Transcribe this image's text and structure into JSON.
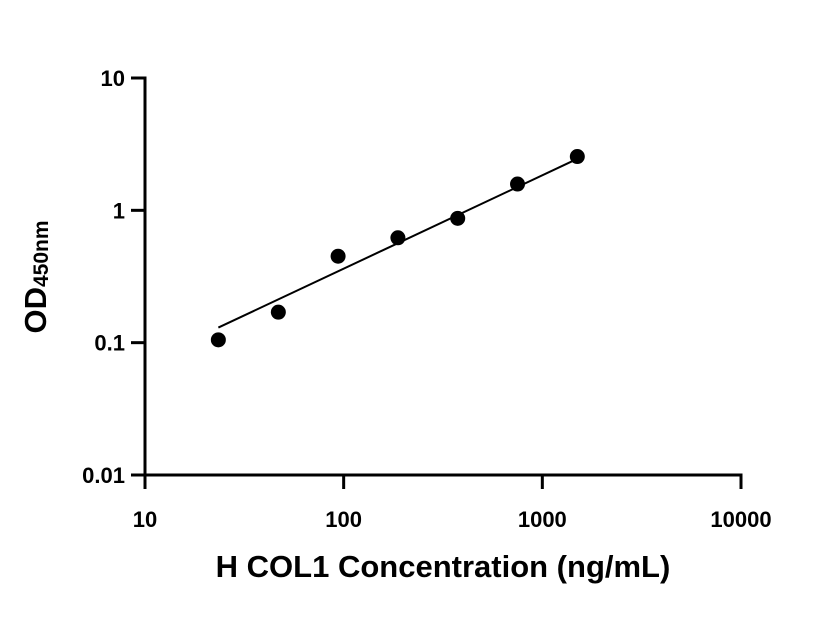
{
  "chart_data": {
    "type": "scatter",
    "xscale": "log",
    "yscale": "log",
    "xlim": [
      10,
      10000
    ],
    "ylim": [
      0.01,
      10
    ],
    "xticks": [
      10,
      100,
      1000,
      10000
    ],
    "yticks": [
      0.01,
      0.1,
      1,
      10
    ],
    "xtick_labels": [
      "10",
      "100",
      "1000",
      "10000"
    ],
    "ytick_labels": [
      "0.01",
      "0.1",
      "1",
      "10"
    ],
    "xlabel": "H COL1 Concentration (ng/mL)",
    "ylabel_main": "OD",
    "ylabel_sub": "450nm",
    "grid": false,
    "series": [
      {
        "x": [
          23.4,
          46.9,
          93.75,
          187.5,
          375,
          750,
          1500
        ],
        "y": [
          0.105,
          0.17,
          0.45,
          0.62,
          0.87,
          1.58,
          2.55
        ]
      }
    ],
    "fit_line": {
      "x": [
        23.4,
        1500
      ],
      "y": [
        0.13,
        2.45
      ]
    },
    "colors": {
      "points": "#000000",
      "line": "#000000",
      "axes": "#000000"
    }
  }
}
